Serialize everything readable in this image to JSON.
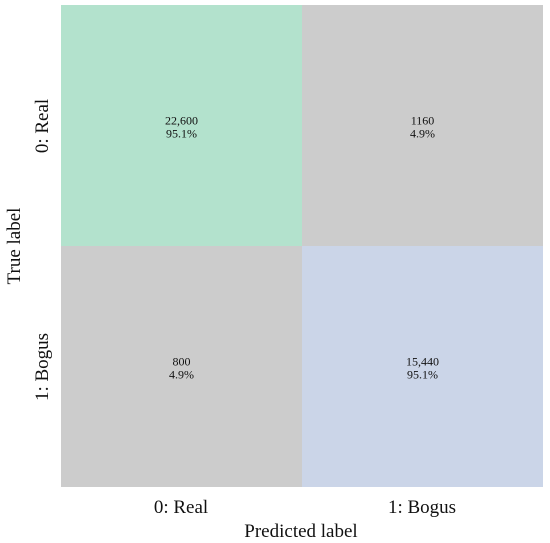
{
  "chart_data": {
    "type": "heatmap",
    "title": "",
    "xlabel": "Predicted label",
    "ylabel": "True label",
    "x_categories": [
      "0: Real",
      "1: Bogus"
    ],
    "y_categories": [
      "0: Real",
      "1: Bogus"
    ],
    "cells": [
      {
        "row": 0,
        "col": 0,
        "count": "22,600",
        "percent": "95.1%",
        "color": "#b3e2cd"
      },
      {
        "row": 0,
        "col": 1,
        "count": "1160",
        "percent": "4.9%",
        "color": "#cccccc"
      },
      {
        "row": 1,
        "col": 0,
        "count": "800",
        "percent": "4.9%",
        "color": "#cccccc"
      },
      {
        "row": 1,
        "col": 1,
        "count": "15,440",
        "percent": "95.1%",
        "color": "#cbd5e8"
      }
    ]
  }
}
